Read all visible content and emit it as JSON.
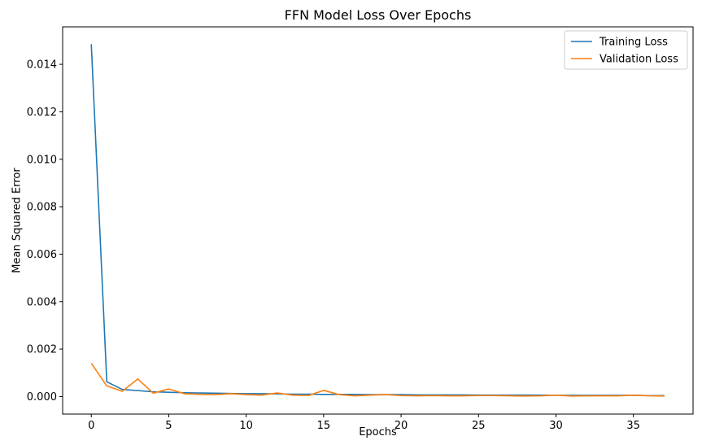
{
  "chart_data": {
    "type": "line",
    "title": "FFN Model Loss Over Epochs",
    "xlabel": "Epochs",
    "ylabel": "Mean Squared Error",
    "xlim": [
      -1.85,
      38.85
    ],
    "ylim": [
      -0.00074,
      0.01558
    ],
    "xticks": [
      0,
      5,
      10,
      15,
      20,
      25,
      30,
      35
    ],
    "xtick_labels": [
      "0",
      "5",
      "10",
      "15",
      "20",
      "25",
      "30",
      "35"
    ],
    "yticks": [
      0,
      0.002,
      0.004,
      0.006,
      0.008,
      0.01,
      0.012,
      0.014
    ],
    "ytick_labels": [
      "0.000",
      "0.002",
      "0.004",
      "0.006",
      "0.008",
      "0.010",
      "0.012",
      "0.014"
    ],
    "grid": false,
    "legend_position": "top-right",
    "x": [
      0,
      1,
      2,
      3,
      4,
      5,
      6,
      7,
      8,
      9,
      10,
      11,
      12,
      13,
      14,
      15,
      16,
      17,
      18,
      19,
      20,
      21,
      22,
      23,
      24,
      25,
      26,
      27,
      28,
      29,
      30,
      31,
      32,
      33,
      34,
      35,
      36,
      37
    ],
    "series": [
      {
        "name": "Training Loss",
        "color": "#1f77b4",
        "values": [
          0.01485,
          0.00062,
          0.0003,
          0.00025,
          0.0002,
          0.00018,
          0.00016,
          0.00015,
          0.00014,
          0.00013,
          0.00012,
          0.00012,
          0.00011,
          0.0001,
          0.0001,
          9e-05,
          9e-05,
          9e-05,
          8e-05,
          8e-05,
          8e-05,
          7e-05,
          7e-05,
          7e-05,
          7e-05,
          6e-05,
          6e-05,
          6e-05,
          6e-05,
          6e-05,
          5e-05,
          5e-05,
          5e-05,
          5e-05,
          5e-05,
          5e-05,
          4e-05,
          4e-05
        ]
      },
      {
        "name": "Validation Loss",
        "color": "#ff7f0e",
        "values": [
          0.0014,
          0.00045,
          0.00022,
          0.00074,
          0.00014,
          0.00032,
          0.00012,
          9e-05,
          8e-05,
          0.00012,
          8e-05,
          6e-05,
          0.00015,
          6e-05,
          4e-05,
          0.00026,
          8e-05,
          3e-05,
          6e-05,
          8e-05,
          4e-05,
          3e-05,
          4e-05,
          3e-05,
          3e-05,
          4e-05,
          4e-05,
          3e-05,
          2e-05,
          3e-05,
          6e-05,
          2e-05,
          3e-05,
          3e-05,
          3e-05,
          6e-05,
          3e-05,
          2e-05
        ]
      }
    ]
  }
}
